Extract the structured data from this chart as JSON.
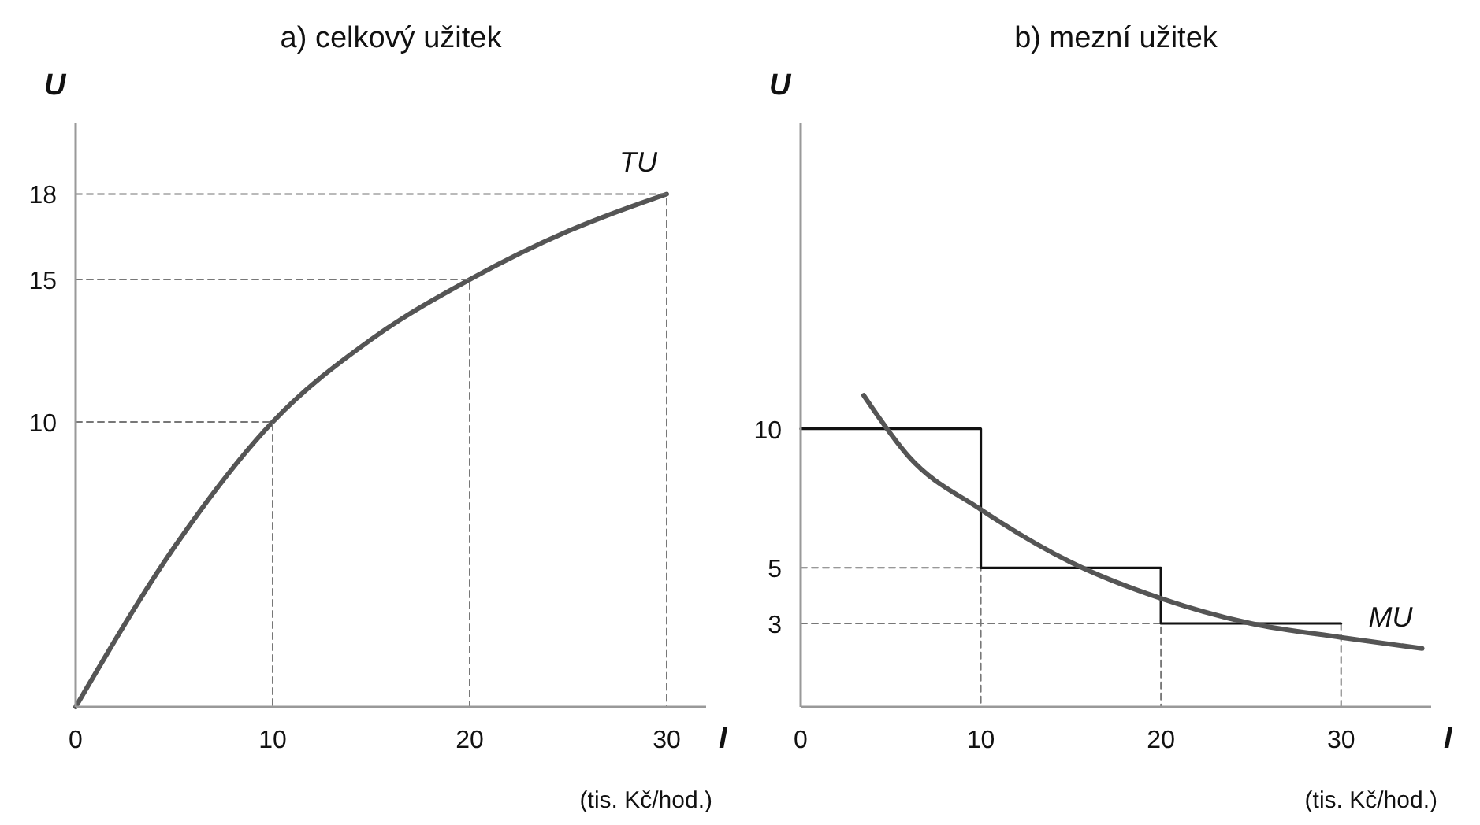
{
  "chart_data": [
    {
      "type": "line",
      "title": "a) celkový užitek",
      "xlabel": "I",
      "ylabel": "U",
      "annotations": [
        "(tis. Kč/hod.)"
      ],
      "xlim": [
        0,
        32
      ],
      "ylim": [
        0,
        20.5
      ],
      "xticks": [
        0,
        10,
        20,
        30
      ],
      "yticks": [
        10,
        15,
        18
      ],
      "series": [
        {
          "name": "TU",
          "color": "#555555",
          "x": [
            0,
            5,
            10,
            15,
            20,
            25,
            30
          ],
          "values": [
            0,
            5.6,
            10,
            12.9,
            15,
            16.7,
            18
          ]
        },
        {
          "color": "#777777",
          "line_style": "dashed",
          "x": [
            0,
            10,
            10
          ],
          "values": [
            10,
            10,
            0
          ]
        },
        {
          "color": "#777777",
          "line_style": "dashed",
          "x": [
            0,
            20,
            20
          ],
          "values": [
            15,
            15,
            0
          ]
        },
        {
          "color": "#777777",
          "line_style": "dashed",
          "x": [
            0,
            30,
            30
          ],
          "values": [
            18,
            18,
            0
          ]
        }
      ]
    },
    {
      "type": "line",
      "title": "b) mezní užitek",
      "xlabel": "I",
      "ylabel": "U",
      "annotations": [
        "(tis. Kč/hod.)"
      ],
      "xlim": [
        0,
        35
      ],
      "ylim": [
        0,
        21
      ],
      "xticks": [
        0,
        10,
        20,
        30
      ],
      "yticks": [
        3,
        5,
        10
      ],
      "series": [
        {
          "color": "#777777",
          "line_style": "dashed",
          "x": [
            0,
            10,
            10
          ],
          "values": [
            5,
            5,
            0
          ]
        },
        {
          "color": "#777777",
          "line_style": "dashed",
          "x": [
            0,
            20,
            20
          ],
          "values": [
            3,
            3,
            0
          ]
        },
        {
          "color": "#777777",
          "line_style": "dashed",
          "x": [
            30,
            30
          ],
          "values": [
            3,
            0
          ]
        },
        {
          "type": "step",
          "color": "#111111",
          "x": [
            0,
            10,
            20,
            30
          ],
          "values": [
            10,
            5,
            3,
            3
          ]
        },
        {
          "name": "MU",
          "color": "#555555",
          "x": [
            3.5,
            6,
            10,
            15,
            20,
            25,
            30,
            34.5
          ],
          "values": [
            11.2,
            9,
            7.1,
            5.2,
            3.9,
            3,
            2.5,
            2.1
          ]
        }
      ]
    }
  ]
}
